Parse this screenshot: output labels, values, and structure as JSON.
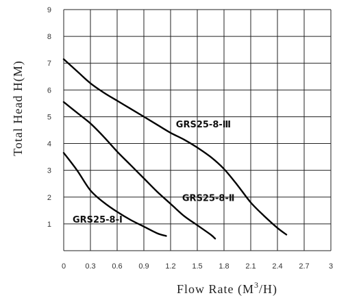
{
  "chart_data": {
    "type": "line",
    "title": "",
    "xlabel": "Flow Rate (M",
    "xlabel_sup": "3",
    "xlabel_tail": "/H)",
    "ylabel": "Total Head H(M)",
    "xlim": [
      0,
      3
    ],
    "ylim": [
      0,
      9
    ],
    "x_ticks": [
      "0",
      "0.3",
      "0.6",
      "0.9",
      "1.2",
      "1.5",
      "1.8",
      "2.1",
      "2.4",
      "2.7",
      "3"
    ],
    "y_ticks": [
      "1",
      "2",
      "3",
      "4",
      "5",
      "6",
      "7",
      "8",
      "9"
    ],
    "grid": true,
    "legend": "none",
    "series": [
      {
        "name": "GRS25-8-Ⅰ",
        "x": [
          0,
          0.15,
          0.3,
          0.45,
          0.6,
          0.75,
          0.9,
          1.05,
          1.15
        ],
        "y": [
          3.65,
          3.0,
          2.25,
          1.8,
          1.45,
          1.15,
          0.9,
          0.65,
          0.55
        ]
      },
      {
        "name": "GRS25-8-Ⅱ",
        "x": [
          0,
          0.15,
          0.3,
          0.45,
          0.6,
          0.75,
          0.9,
          1.05,
          1.2,
          1.35,
          1.5,
          1.65,
          1.7
        ],
        "y": [
          5.55,
          5.15,
          4.75,
          4.25,
          3.7,
          3.2,
          2.7,
          2.2,
          1.75,
          1.3,
          0.95,
          0.6,
          0.45
        ]
      },
      {
        "name": "GRS25-8-Ⅲ",
        "x": [
          0,
          0.15,
          0.3,
          0.45,
          0.6,
          0.75,
          0.9,
          1.05,
          1.2,
          1.35,
          1.5,
          1.65,
          1.8,
          1.95,
          2.1,
          2.25,
          2.4,
          2.5
        ],
        "y": [
          7.15,
          6.7,
          6.25,
          5.9,
          5.6,
          5.3,
          5.0,
          4.7,
          4.4,
          4.15,
          3.85,
          3.5,
          3.05,
          2.45,
          1.8,
          1.3,
          0.85,
          0.6
        ]
      }
    ],
    "annotations": [
      {
        "text": "GRS25-8-Ⅰ",
        "x": 0.1,
        "y": 1.05
      },
      {
        "text": "GRS25-8-Ⅱ",
        "x": 1.33,
        "y": 1.85
      },
      {
        "text": "GRS25-8-Ⅲ",
        "x": 1.26,
        "y": 4.6
      }
    ]
  }
}
